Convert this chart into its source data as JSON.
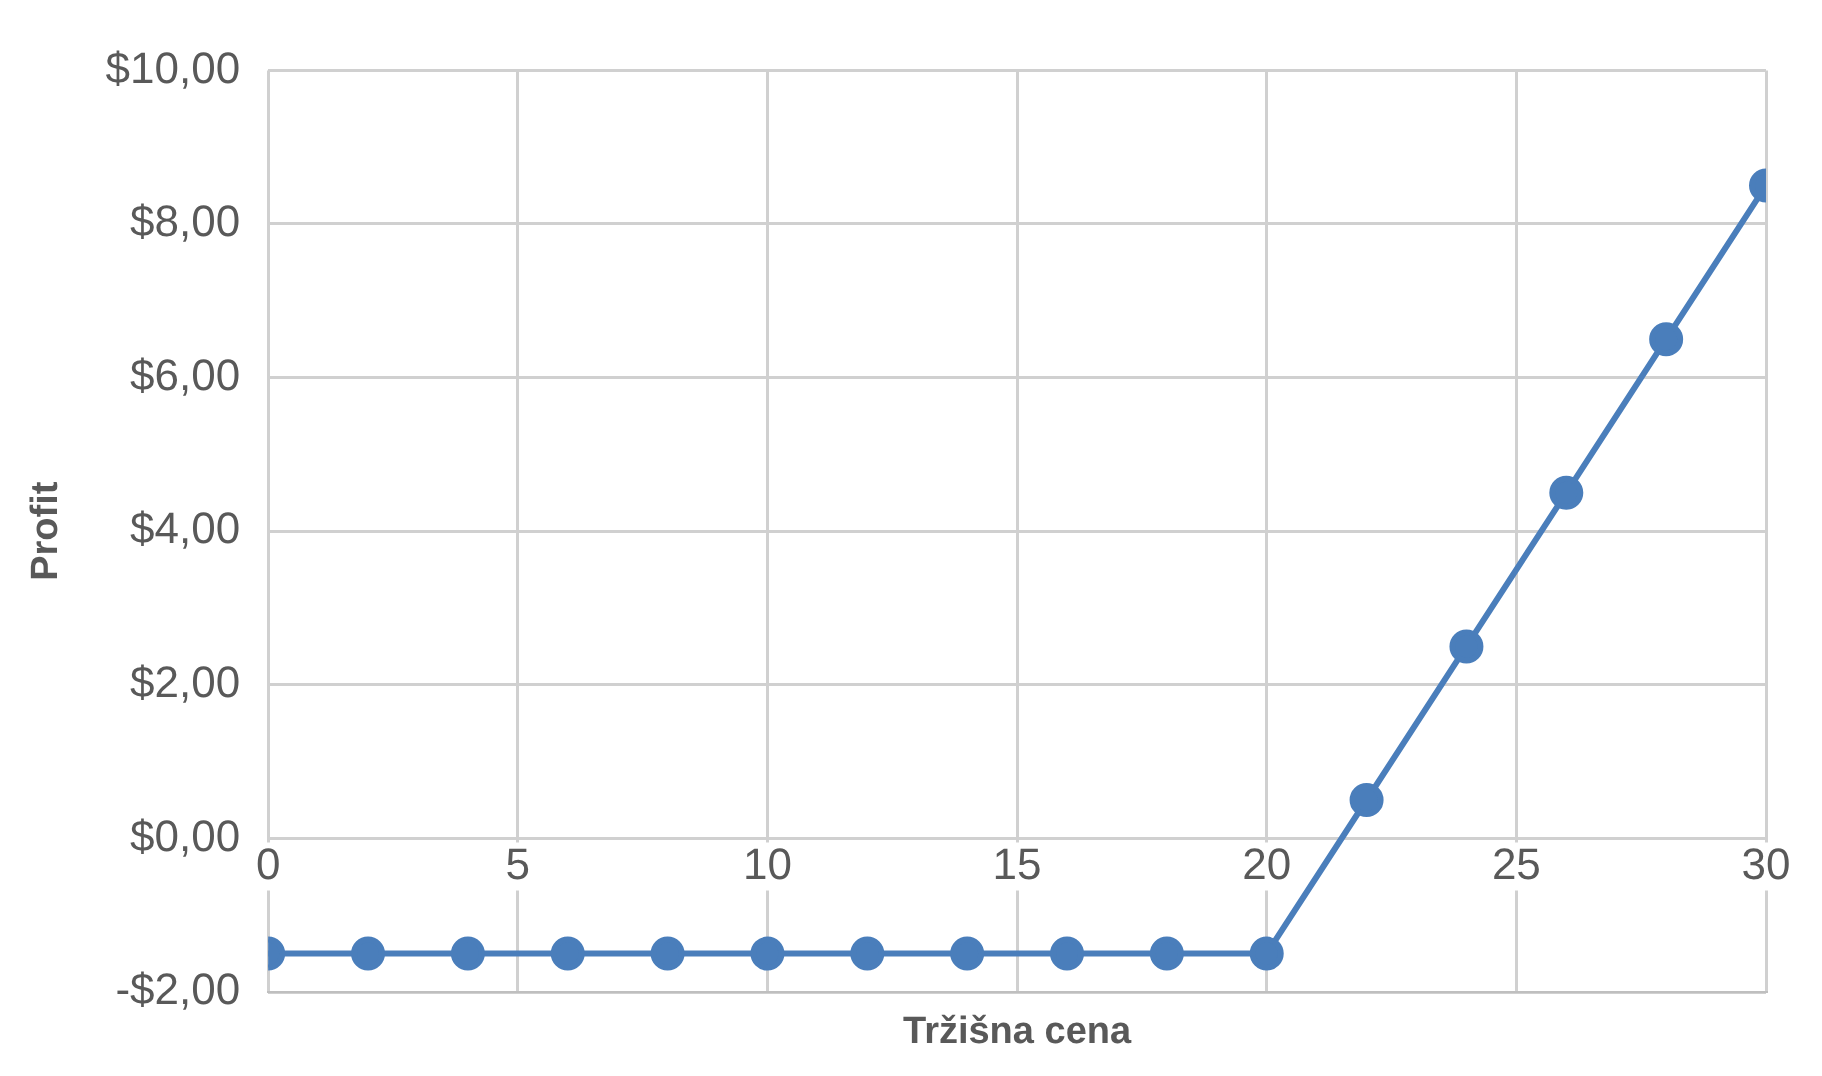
{
  "chart_data": {
    "type": "line",
    "xlabel": "Tržišna cena",
    "ylabel": "Profit",
    "x": [
      0,
      2,
      4,
      6,
      8,
      10,
      12,
      14,
      16,
      18,
      20,
      22,
      24,
      26,
      28,
      30
    ],
    "series": [
      {
        "color": "#4a7ebb",
        "values": [
          -1.5,
          -1.5,
          -1.5,
          -1.5,
          -1.5,
          -1.5,
          -1.5,
          -1.5,
          -1.5,
          -1.5,
          -1.5,
          0.5,
          2.5,
          4.5,
          6.5,
          8.5
        ]
      }
    ],
    "xlim": [
      0,
      30
    ],
    "xticks": [
      0,
      5,
      10,
      15,
      20,
      25,
      30
    ],
    "ylim": [
      -2,
      10
    ],
    "yticks": [
      {
        "value": -2,
        "label": "-$2,00"
      },
      {
        "value": 0,
        "label": "$0,00"
      },
      {
        "value": 2,
        "label": "$2,00"
      },
      {
        "value": 4,
        "label": "$4,00"
      },
      {
        "value": 6,
        "label": "$6,00"
      },
      {
        "value": 8,
        "label": "$8,00"
      },
      {
        "value": 10,
        "label": "$10,00"
      }
    ],
    "grid": true,
    "legend": false,
    "marker": "circle",
    "line_style": "solid"
  }
}
